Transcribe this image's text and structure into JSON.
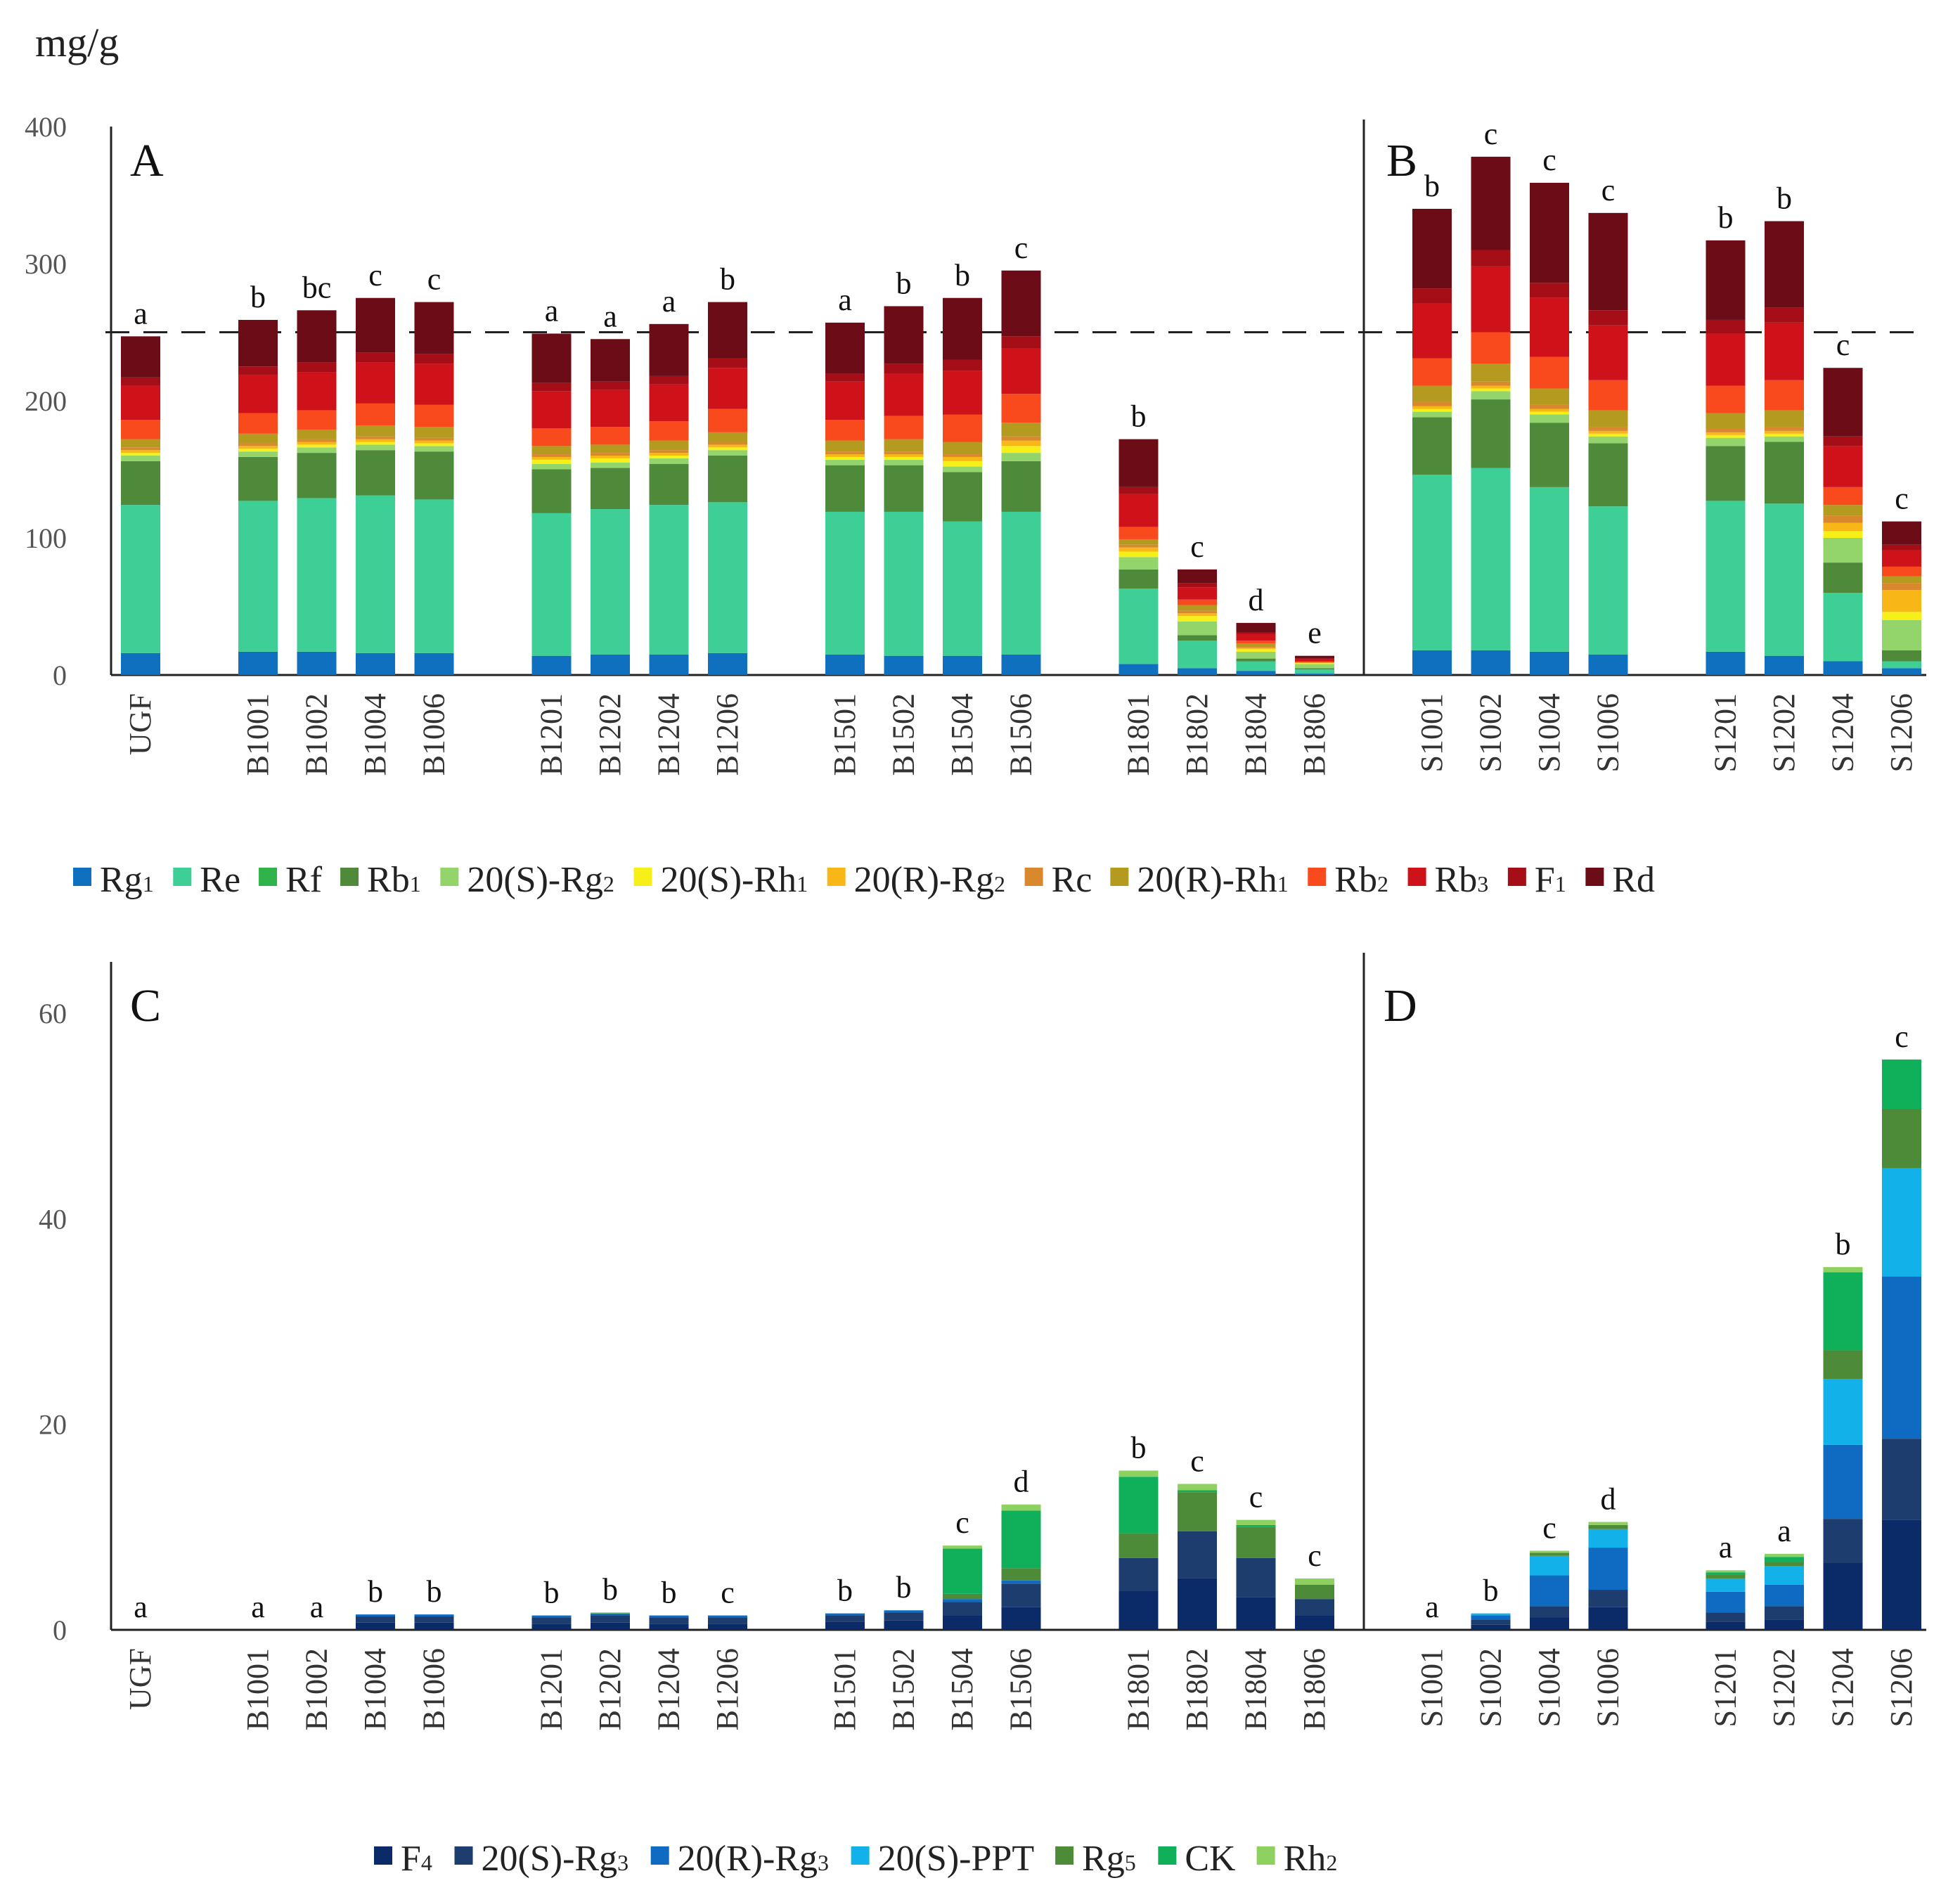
{
  "chart_data": [
    {
      "panel": "top",
      "type": "bar",
      "stacked": true,
      "unit_label": "mg/g",
      "panel_labels": [
        "A",
        "B"
      ],
      "ylim": [
        0,
        400
      ],
      "yticks": [
        0,
        100,
        200,
        300,
        400
      ],
      "reference_line": 250,
      "groups": [
        [
          "UGF"
        ],
        [
          "B1001",
          "B1002",
          "B1004",
          "B1006"
        ],
        [
          "B1201",
          "B1202",
          "B1204",
          "B1206"
        ],
        [
          "B1501",
          "B1502",
          "B1504",
          "B1506"
        ],
        [
          "B1801",
          "B1802",
          "B1804",
          "B1806"
        ],
        [
          "S1001",
          "S1002",
          "S1004",
          "S1006"
        ],
        [
          "S1201",
          "S1202",
          "S1204",
          "S1206"
        ]
      ],
      "categories": [
        "UGF",
        "B1001",
        "B1002",
        "B1004",
        "B1006",
        "B1201",
        "B1202",
        "B1204",
        "B1206",
        "B1501",
        "B1502",
        "B1504",
        "B1506",
        "B1801",
        "B1802",
        "B1804",
        "B1806",
        "S1001",
        "S1002",
        "S1004",
        "S1006",
        "S1201",
        "S1202",
        "S1204",
        "S1206"
      ],
      "letters": [
        "a",
        "b",
        "bc",
        "c",
        "c",
        "a",
        "a",
        "a",
        "b",
        "a",
        "b",
        "b",
        "c",
        "b",
        "c",
        "d",
        "e",
        "b",
        "c",
        "c",
        "c",
        "b",
        "b",
        "c",
        "c"
      ],
      "series": [
        {
          "name": "Rg1",
          "color": "#0f70c0",
          "values": [
            16,
            17,
            17,
            16,
            16,
            14,
            15,
            15,
            16,
            15,
            14,
            14,
            15,
            8,
            5,
            3,
            1,
            18,
            18,
            17,
            15,
            17,
            14,
            10,
            5
          ]
        },
        {
          "name": "Re",
          "color": "#3ecf96",
          "values": [
            108,
            110,
            112,
            115,
            112,
            104,
            106,
            109,
            110,
            104,
            105,
            98,
            104,
            55,
            20,
            7,
            3,
            128,
            133,
            120,
            108,
            110,
            111,
            50,
            5
          ]
        },
        {
          "name": "Rf",
          "color": "#2fb34a",
          "values": [
            0,
            0,
            0,
            0,
            0,
            0,
            0,
            0,
            0,
            0,
            0,
            0,
            0,
            0,
            0,
            0,
            0,
            0,
            0,
            0,
            0,
            0,
            0,
            0,
            0
          ]
        },
        {
          "name": "Rb1",
          "color": "#4f8a3a",
          "values": [
            32,
            32,
            33,
            33,
            35,
            32,
            30,
            30,
            34,
            34,
            34,
            36,
            37,
            14,
            4,
            2,
            1,
            42,
            50,
            47,
            46,
            40,
            45,
            22,
            8
          ]
        },
        {
          "name": "20(S)-Rg2",
          "color": "#93d56a",
          "values": [
            4,
            4,
            4,
            4,
            4,
            4,
            4,
            4,
            4,
            4,
            4,
            4,
            6,
            9,
            10,
            5,
            3,
            4,
            6,
            6,
            5,
            6,
            4,
            18,
            22
          ]
        },
        {
          "name": "20(S)-Rh1",
          "color": "#f7f018",
          "values": [
            2,
            2,
            2,
            2,
            2,
            3,
            3,
            2,
            2,
            2,
            2,
            4,
            5,
            4,
            4,
            2,
            1,
            2,
            2,
            2,
            2,
            2,
            2,
            5,
            6
          ]
        },
        {
          "name": "20(R)-Rg2",
          "color": "#f8b617",
          "values": [
            2,
            2,
            2,
            2,
            2,
            2,
            2,
            2,
            2,
            2,
            2,
            3,
            4,
            3,
            2,
            1,
            0,
            2,
            2,
            2,
            2,
            2,
            2,
            6,
            16
          ]
        },
        {
          "name": "Rc",
          "color": "#d9882e",
          "values": [
            2,
            2,
            2,
            2,
            2,
            2,
            2,
            2,
            2,
            2,
            2,
            2,
            3,
            2,
            2,
            1,
            0,
            3,
            3,
            3,
            3,
            3,
            3,
            5,
            5
          ]
        },
        {
          "name": "20(R)-Rh1",
          "color": "#b49a1e",
          "values": [
            6,
            7,
            7,
            8,
            8,
            6,
            6,
            7,
            7,
            8,
            9,
            9,
            10,
            4,
            4,
            2,
            0,
            12,
            13,
            12,
            12,
            11,
            12,
            8,
            5
          ]
        },
        {
          "name": "Rb2",
          "color": "#f94a1e",
          "values": [
            14,
            15,
            14,
            16,
            16,
            13,
            13,
            14,
            17,
            15,
            17,
            20,
            21,
            9,
            4,
            2,
            1,
            20,
            23,
            23,
            22,
            20,
            22,
            13,
            7
          ]
        },
        {
          "name": "Rb3",
          "color": "#cf111a",
          "values": [
            25,
            28,
            28,
            30,
            30,
            27,
            27,
            27,
            30,
            28,
            31,
            32,
            33,
            24,
            9,
            5,
            2,
            40,
            48,
            43,
            40,
            38,
            42,
            30,
            12
          ]
        },
        {
          "name": "F1",
          "color": "#a50e16",
          "values": [
            6,
            6,
            7,
            7,
            7,
            6,
            6,
            6,
            7,
            6,
            7,
            8,
            9,
            5,
            3,
            1,
            0,
            11,
            12,
            11,
            11,
            10,
            11,
            7,
            4
          ]
        },
        {
          "name": "Rd",
          "color": "#6b0c17",
          "values": [
            30,
            34,
            38,
            40,
            38,
            36,
            31,
            38,
            41,
            37,
            42,
            45,
            48,
            35,
            10,
            7,
            2,
            58,
            68,
            73,
            71,
            58,
            63,
            50,
            17
          ]
        }
      ]
    },
    {
      "panel": "bottom",
      "type": "bar",
      "stacked": true,
      "panel_labels": [
        "C",
        "D"
      ],
      "ylim": [
        0,
        65
      ],
      "yticks": [
        0,
        20,
        40,
        60
      ],
      "groups": [
        [
          "UGF"
        ],
        [
          "B1001",
          "B1002",
          "B1004",
          "B1006"
        ],
        [
          "B1201",
          "B1202",
          "B1204",
          "B1206"
        ],
        [
          "B1501",
          "B1502",
          "B1504",
          "B1506"
        ],
        [
          "B1801",
          "B1802",
          "B1804",
          "B1806"
        ],
        [
          "S1001",
          "S1002",
          "S1004",
          "S1006"
        ],
        [
          "S1201",
          "S1202",
          "S1204",
          "S1206"
        ]
      ],
      "categories": [
        "UGF",
        "B1001",
        "B1002",
        "B1004",
        "B1006",
        "B1201",
        "B1202",
        "B1204",
        "B1206",
        "B1501",
        "B1502",
        "B1504",
        "B1506",
        "B1801",
        "B1802",
        "B1804",
        "B1806",
        "S1001",
        "S1002",
        "S1004",
        "S1006",
        "S1201",
        "S1202",
        "S1204",
        "S1206"
      ],
      "letters": [
        "a",
        "a",
        "a",
        "b",
        "b",
        "b",
        "b",
        "b",
        "c",
        "b",
        "b",
        "c",
        "d",
        "b",
        "c",
        "c",
        "c",
        "a",
        "b",
        "c",
        "d",
        "a",
        "a",
        "b",
        "c"
      ],
      "series": [
        {
          "name": "F4",
          "color": "#0a2a68",
          "values": [
            0,
            0,
            0,
            0.7,
            0.7,
            0.6,
            0.7,
            0.6,
            0.6,
            0.8,
            0.9,
            1.4,
            2.2,
            3.8,
            5.0,
            3.2,
            1.4,
            0,
            0.5,
            1.2,
            2.2,
            0.8,
            1.0,
            6.5,
            10.7
          ]
        },
        {
          "name": "20(S)-Rg3",
          "color": "#1e3d6f",
          "values": [
            0,
            0,
            0,
            0.6,
            0.6,
            0.6,
            0.7,
            0.6,
            0.6,
            0.6,
            0.8,
            1.3,
            2.3,
            3.2,
            4.6,
            3.8,
            1.6,
            0,
            0.5,
            1.1,
            1.7,
            0.9,
            1.3,
            4.3,
            7.9
          ]
        },
        {
          "name": "20(R)-Rg3",
          "color": "#0f6bc1",
          "values": [
            0,
            0,
            0,
            0.2,
            0.2,
            0.2,
            0.2,
            0.2,
            0.2,
            0.2,
            0.2,
            0.3,
            0.3,
            0,
            0,
            0,
            0,
            0,
            0.4,
            3.0,
            4.1,
            2.0,
            2.1,
            7.2,
            15.8
          ]
        },
        {
          "name": "20(S)-PPT",
          "color": "#12b1ea",
          "values": [
            0,
            0,
            0,
            0,
            0,
            0,
            0,
            0,
            0,
            0,
            0,
            0,
            0,
            0,
            0,
            0,
            0,
            0,
            0.2,
            1.9,
            1.8,
            1.3,
            1.8,
            6.4,
            10.5
          ]
        },
        {
          "name": "Rg5",
          "color": "#4e8b39",
          "values": [
            0,
            0,
            0,
            0,
            0,
            0,
            0,
            0,
            0,
            0,
            0,
            0.5,
            1.2,
            2.4,
            3.8,
            3.0,
            1.4,
            0,
            0,
            0.3,
            0.4,
            0.4,
            0.4,
            2.8,
            5.8
          ]
        },
        {
          "name": "CK",
          "color": "#10b05a",
          "values": [
            0,
            0,
            0,
            0,
            0,
            0,
            0,
            0,
            0,
            0,
            0,
            4.4,
            5.6,
            5.5,
            0.2,
            0.2,
            0,
            0,
            0,
            0,
            0,
            0.2,
            0.5,
            7.6,
            4.8
          ]
        },
        {
          "name": "Rh2",
          "color": "#8fd161",
          "values": [
            0,
            0,
            0,
            0,
            0,
            0,
            0.1,
            0,
            0,
            0,
            0,
            0.3,
            0.6,
            0.6,
            0.6,
            0.5,
            0.6,
            0,
            0,
            0.2,
            0.3,
            0.2,
            0.3,
            0.5,
            0
          ]
        }
      ]
    }
  ],
  "legend_top": [
    {
      "base": "Rg",
      "sub": "1"
    },
    {
      "base": "Re",
      "sub": ""
    },
    {
      "base": "Rf",
      "sub": ""
    },
    {
      "base": "Rb",
      "sub": "1"
    },
    {
      "base": "20(S)-Rg",
      "sub": "2"
    },
    {
      "base": "20(S)-Rh",
      "sub": "1"
    },
    {
      "base": "20(R)-Rg",
      "sub": "2"
    },
    {
      "base": "Rc",
      "sub": ""
    },
    {
      "base": "20(R)-Rh",
      "sub": "1"
    },
    {
      "base": "Rb",
      "sub": "2"
    },
    {
      "base": "Rb",
      "sub": "3"
    },
    {
      "base": "F",
      "sub": "1"
    },
    {
      "base": "Rd",
      "sub": ""
    }
  ],
  "legend_bottom": [
    {
      "base": "F",
      "sub": "4"
    },
    {
      "base": "20(S)-Rg",
      "sub": "3"
    },
    {
      "base": "20(R)-Rg",
      "sub": "3"
    },
    {
      "base": "20(S)-PPT",
      "sub": ""
    },
    {
      "base": "Rg",
      "sub": "5"
    },
    {
      "base": "CK",
      "sub": ""
    },
    {
      "base": "Rh",
      "sub": "2"
    }
  ]
}
